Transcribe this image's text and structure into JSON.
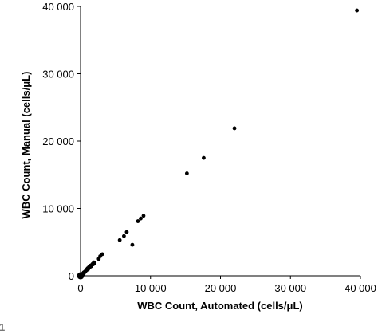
{
  "chart_data": {
    "type": "scatter",
    "xlabel": "WBC Count, Automated (cells/μL)",
    "ylabel": "WBC Count, Manual (cells/μL)",
    "xlim": [
      0,
      40000
    ],
    "ylim": [
      0,
      40000
    ],
    "x_ticks": [
      "0",
      "10 000",
      "20 000",
      "30 000",
      "40 000"
    ],
    "y_ticks": [
      "0",
      "10 000",
      "20 000",
      "30 000",
      "40 000"
    ],
    "grid": false,
    "legend": "none",
    "marker_color": "#000000",
    "series": [
      {
        "points": [
          [
            0,
            0
          ],
          [
            50,
            80
          ],
          [
            100,
            50
          ],
          [
            150,
            150
          ],
          [
            200,
            100
          ],
          [
            250,
            300
          ],
          [
            300,
            200
          ],
          [
            350,
            350
          ],
          [
            400,
            300
          ],
          [
            450,
            500
          ],
          [
            500,
            400
          ],
          [
            600,
            600
          ],
          [
            700,
            650
          ],
          [
            800,
            900
          ],
          [
            900,
            850
          ],
          [
            1000,
            1100
          ],
          [
            1100,
            1000
          ],
          [
            1200,
            1300
          ],
          [
            1300,
            1250
          ],
          [
            1400,
            1500
          ],
          [
            1500,
            1400
          ],
          [
            1600,
            1600
          ],
          [
            1700,
            1750
          ],
          [
            1800,
            1700
          ],
          [
            1900,
            2000
          ],
          [
            2000,
            1900
          ],
          [
            2600,
            2500
          ],
          [
            2800,
            2900
          ],
          [
            3100,
            3200
          ],
          [
            5600,
            5300
          ],
          [
            6200,
            5900
          ],
          [
            6600,
            6500
          ],
          [
            7400,
            4600
          ],
          [
            8200,
            8100
          ],
          [
            8600,
            8500
          ],
          [
            9000,
            8900
          ],
          [
            15200,
            15200
          ],
          [
            17600,
            17500
          ],
          [
            22000,
            21900
          ],
          [
            39500,
            39400
          ]
        ]
      }
    ],
    "panel_label": "1"
  }
}
